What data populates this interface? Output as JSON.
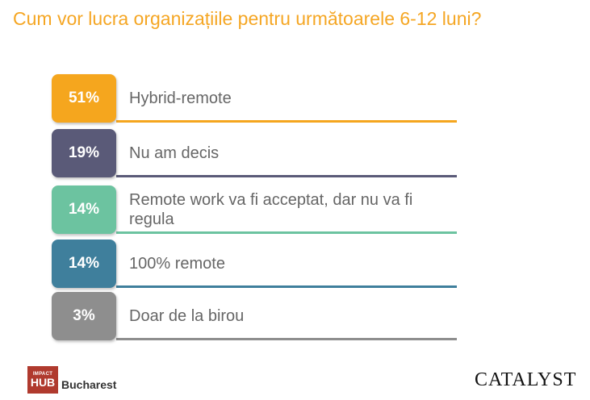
{
  "title": "Cum vor lucra organizațiile pentru următoarele 6-12 luni?",
  "chart_data": {
    "type": "bar",
    "title": "Cum vor lucra organizațiile pentru următoarele 6-12 luni?",
    "categories": [
      "Hybrid-remote",
      "Nu am decis",
      "Remote work va fi acceptat, dar nu va fi regula",
      "100% remote",
      "Doar de la birou"
    ],
    "values": [
      51,
      19,
      14,
      14,
      3
    ],
    "value_labels": [
      "51%",
      "19%",
      "14%",
      "14%",
      "3%"
    ],
    "colors": [
      "#f5a61e",
      "#5a5a78",
      "#6cc3a0",
      "#3f7f9c",
      "#8e8e8e"
    ],
    "line_colors": [
      "#f5a61e",
      "#5a5a78",
      "#6cc3a0",
      "#3f7f9c",
      "#8e8e8e"
    ]
  },
  "footer": {
    "impact_small": "IMPACT",
    "impact_big": "HUB",
    "city": "Bucharest",
    "catalyst": "CATALYST"
  }
}
